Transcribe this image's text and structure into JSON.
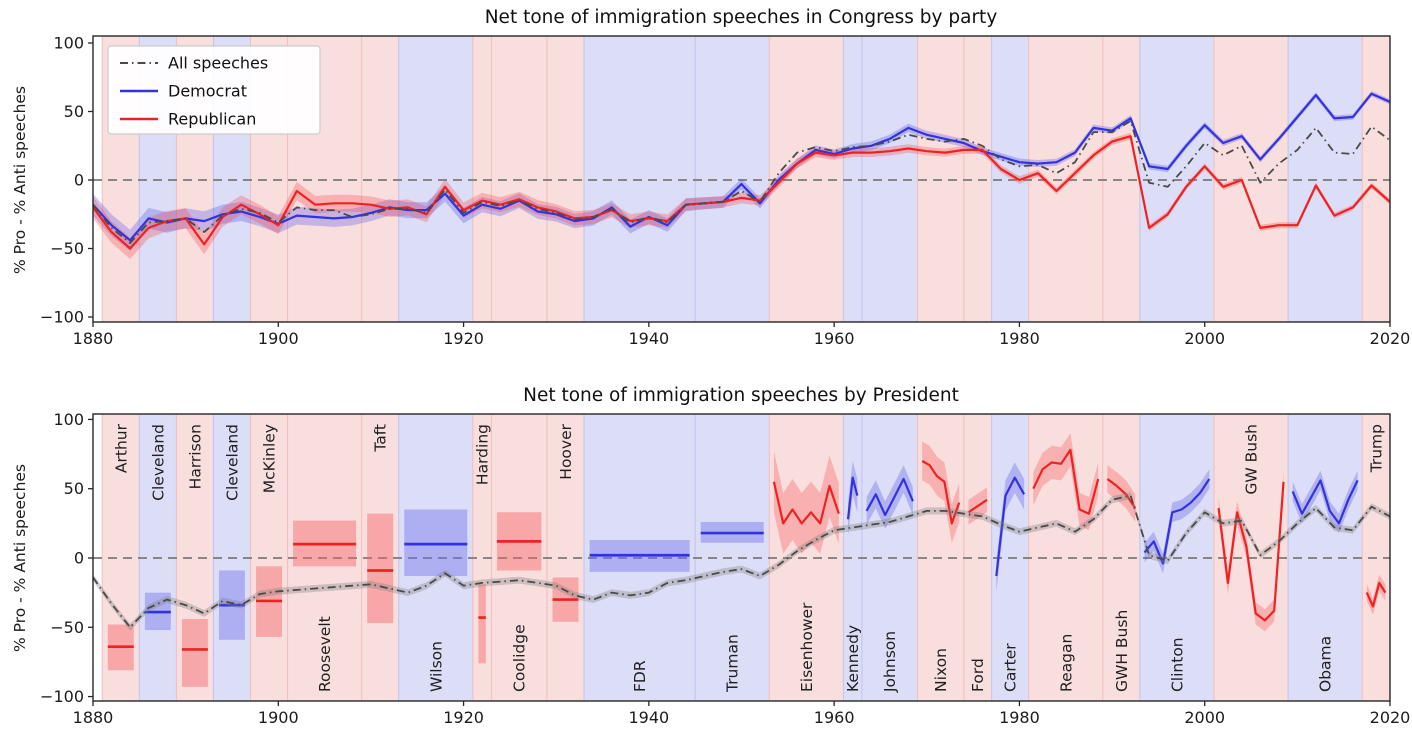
{
  "figure": {
    "ylabel": "% Pro - % Anti speeches",
    "xticks": [
      1880,
      1900,
      1920,
      1940,
      1960,
      1980,
      2000,
      2020
    ],
    "yticks": [
      100,
      50,
      0,
      -50,
      -100
    ],
    "colors": {
      "democrat": "#3333dd",
      "republican": "#ee2222",
      "all_speeches": "#4a4a4a",
      "democrat_band": "#dcddf6",
      "republican_band": "#f9dede",
      "democrat_band_edge": "#bfc3ef",
      "republican_band_edge": "#f2bcbe",
      "democrat_ci": "rgba(70,70,235,0.28)",
      "republican_ci": "rgba(248,70,70,0.30)",
      "democrat_box": "rgba(110,110,235,0.42)",
      "republican_box": "rgba(244,100,100,0.45)",
      "all_ci": "rgba(130,130,130,0.35)",
      "zero_line": "#7a7a7a",
      "axis": "#262626",
      "legend_border": "#cccccc",
      "legend_background": "#ffffff"
    },
    "legend": [
      {
        "label": "All speeches",
        "color_key": "all_speeches",
        "style": "dashdot"
      },
      {
        "label": "Democrat",
        "color_key": "democrat",
        "style": "solid"
      },
      {
        "label": "Republican",
        "color_key": "republican",
        "style": "solid"
      }
    ],
    "presidents": [
      {
        "name": "Arthur",
        "start": 1881,
        "end": 1885,
        "party": "R",
        "label_pos": "top",
        "bar": {
          "mean": -64,
          "lo": -81,
          "hi": -48
        }
      },
      {
        "name": "Cleveland",
        "start": 1885,
        "end": 1889,
        "party": "D",
        "label_pos": "top",
        "bar": {
          "mean": -39,
          "lo": -52,
          "hi": -25
        }
      },
      {
        "name": "Harrison",
        "start": 1889,
        "end": 1893,
        "party": "R",
        "label_pos": "top",
        "bar": {
          "mean": -66,
          "lo": -93,
          "hi": -44
        }
      },
      {
        "name": "Cleveland",
        "start": 1893,
        "end": 1897,
        "party": "D",
        "label_pos": "top",
        "bar": {
          "mean": -34,
          "lo": -59,
          "hi": -9
        }
      },
      {
        "name": "McKinley",
        "start": 1897,
        "end": 1901,
        "party": "R",
        "label_pos": "top",
        "bar": {
          "mean": -31,
          "lo": -57,
          "hi": -6
        }
      },
      {
        "name": "Roosevelt",
        "start": 1901,
        "end": 1909,
        "party": "R",
        "label_pos": "bottom",
        "bar": {
          "mean": 10,
          "lo": -6,
          "hi": 27
        }
      },
      {
        "name": "Taft",
        "start": 1909,
        "end": 1913,
        "party": "R",
        "label_pos": "top",
        "bar": {
          "mean": -9,
          "lo": -47,
          "hi": 32
        }
      },
      {
        "name": "Wilson",
        "start": 1913,
        "end": 1921,
        "party": "D",
        "label_pos": "bottom",
        "bar": {
          "mean": 10,
          "lo": -13,
          "hi": 35
        }
      },
      {
        "name": "Harding",
        "start": 1921,
        "end": 1923,
        "party": "R",
        "label_pos": "top",
        "bar": {
          "mean": -43,
          "lo": -76,
          "hi": -19
        }
      },
      {
        "name": "Coolidge",
        "start": 1923,
        "end": 1929,
        "party": "R",
        "label_pos": "bottom",
        "bar": {
          "mean": 12,
          "lo": -9,
          "hi": 33
        }
      },
      {
        "name": "Hoover",
        "start": 1929,
        "end": 1933,
        "party": "R",
        "label_pos": "top",
        "bar": {
          "mean": -30,
          "lo": -46,
          "hi": -14
        }
      },
      {
        "name": "FDR",
        "start": 1933,
        "end": 1945,
        "party": "D",
        "label_pos": "bottom",
        "bar": {
          "mean": 2,
          "lo": -10,
          "hi": 13
        }
      },
      {
        "name": "Truman",
        "start": 1945,
        "end": 1953,
        "party": "D",
        "label_pos": "bottom",
        "bar": {
          "mean": 18,
          "lo": 11,
          "hi": 26
        }
      },
      {
        "name": "Eisenhower",
        "start": 1953,
        "end": 1961,
        "party": "R",
        "label_pos": "bottom",
        "line": {
          "values": [
            55,
            25,
            35,
            25,
            33,
            25,
            52,
            32
          ],
          "ci": 22
        }
      },
      {
        "name": "Kennedy",
        "start": 1961,
        "end": 1963,
        "party": "D",
        "label_pos": "bottom",
        "line": {
          "values": [
            28,
            58,
            45
          ],
          "ci": 12
        }
      },
      {
        "name": "Johnson",
        "start": 1963,
        "end": 1969,
        "party": "D",
        "label_pos": "bottom",
        "line": {
          "values": [
            34,
            46,
            31,
            44,
            57,
            41
          ],
          "ci": 10
        }
      },
      {
        "name": "Nixon",
        "start": 1969,
        "end": 1974,
        "party": "R",
        "label_pos": "bottom",
        "line": {
          "values": [
            70,
            67,
            59,
            55,
            25,
            40
          ],
          "ci": 14
        }
      },
      {
        "name": "Ford",
        "start": 1974,
        "end": 1977,
        "party": "R",
        "label_pos": "bottom",
        "line": {
          "values": [
            33,
            42
          ],
          "ci": 9
        }
      },
      {
        "name": "Carter",
        "start": 1977,
        "end": 1981,
        "party": "D",
        "label_pos": "bottom",
        "line": {
          "values": [
            -13,
            45,
            58,
            46
          ],
          "ci": 11
        }
      },
      {
        "name": "Reagan",
        "start": 1981,
        "end": 1989,
        "party": "R",
        "label_pos": "bottom",
        "line": {
          "values": [
            50,
            64,
            69,
            68,
            78,
            35,
            32,
            57
          ],
          "ci": 12
        }
      },
      {
        "name": "GWH Bush",
        "start": 1989,
        "end": 1993,
        "party": "R",
        "label_pos": "bottom",
        "line": {
          "values": [
            57,
            52,
            46,
            36
          ],
          "ci": 10
        }
      },
      {
        "name": "Clinton",
        "start": 1993,
        "end": 2001,
        "party": "D",
        "label_pos": "bottom",
        "line": {
          "values": [
            4,
            12,
            -4,
            33,
            35,
            40,
            47,
            57
          ],
          "ci": 7
        }
      },
      {
        "name": "GW Bush",
        "start": 2001,
        "end": 2009,
        "party": "R",
        "label_pos": "top",
        "line": {
          "values": [
            36,
            -18,
            33,
            8,
            -40,
            -45,
            -38,
            55
          ],
          "ci": 8
        }
      },
      {
        "name": "Obama",
        "start": 2009,
        "end": 2017,
        "party": "D",
        "label_pos": "bottom",
        "line": {
          "values": [
            48,
            32,
            44,
            56,
            34,
            25,
            42,
            56
          ],
          "ci": 7
        }
      },
      {
        "name": "Trump",
        "start": 2017,
        "end": 2020,
        "party": "R",
        "label_pos": "top",
        "line": {
          "values": [
            -25,
            -35,
            -18,
            -25
          ],
          "ci": 6
        }
      }
    ]
  },
  "chart_data": [
    {
      "type": "line",
      "title": "Net tone of immigration speeches in Congress by party",
      "xlabel": "",
      "ylabel": "% Pro - % Anti speeches",
      "xlim": [
        1880,
        2020
      ],
      "ylim": [
        -103,
        103
      ],
      "grid": false,
      "legend_position": "upper left",
      "background": "presidential party era bands, red = Republican, blue = Democrat",
      "zero_reference_line": 0,
      "ci_halfwidth_by_year": {
        "1880": 8,
        "1910": 6,
        "1940": 5,
        "1955": 3.5,
        "1985": 2.5,
        "2020": 2
      },
      "x": [
        1880,
        1882,
        1884,
        1886,
        1888,
        1890,
        1892,
        1894,
        1896,
        1898,
        1900,
        1902,
        1904,
        1906,
        1908,
        1910,
        1912,
        1914,
        1916,
        1918,
        1920,
        1922,
        1924,
        1926,
        1928,
        1930,
        1932,
        1934,
        1936,
        1938,
        1940,
        1942,
        1944,
        1946,
        1948,
        1950,
        1952,
        1954,
        1956,
        1958,
        1960,
        1962,
        1964,
        1966,
        1968,
        1970,
        1972,
        1974,
        1976,
        1978,
        1980,
        1982,
        1984,
        1986,
        1988,
        1990,
        1992,
        1994,
        1996,
        1998,
        2000,
        2002,
        2004,
        2006,
        2008,
        2010,
        2012,
        2014,
        2016,
        2018,
        2020
      ],
      "series": [
        {
          "name": "All speeches",
          "color_key": "all_speeches",
          "style": "dashdot",
          "ci": false,
          "values": [
            -18,
            -35,
            -46,
            -31,
            -30,
            -28,
            -38,
            -26,
            -21,
            -24,
            -31,
            -20,
            -22,
            -22,
            -27,
            -25,
            -21,
            -21,
            -24,
            -7,
            -24,
            -16,
            -19,
            -15,
            -21,
            -24,
            -29,
            -27,
            -21,
            -31,
            -27,
            -31,
            -18,
            -17,
            -16,
            -8,
            -16,
            5,
            20,
            24,
            21,
            24,
            25,
            28,
            33,
            30,
            28,
            30,
            25,
            15,
            10,
            11,
            5,
            13,
            35,
            35,
            43,
            -2,
            -5,
            10,
            27,
            18,
            25,
            -2,
            12,
            22,
            38,
            20,
            19,
            39,
            29
          ]
        },
        {
          "name": "Democrat",
          "color_key": "democrat",
          "style": "solid",
          "ci": true,
          "values": [
            -18,
            -33,
            -44,
            -28,
            -31,
            -28,
            -30,
            -25,
            -23,
            -27,
            -32,
            -26,
            -27,
            -28,
            -27,
            -24,
            -20,
            -22,
            -22,
            -10,
            -26,
            -18,
            -21,
            -15,
            -23,
            -25,
            -30,
            -28,
            -20,
            -34,
            -27,
            -33,
            -18,
            -17,
            -16,
            -3,
            -17,
            0,
            12,
            22,
            19,
            23,
            25,
            30,
            38,
            33,
            30,
            27,
            21,
            17,
            13,
            12,
            13,
            20,
            38,
            36,
            45,
            10,
            8,
            25,
            40,
            27,
            32,
            15,
            30,
            46,
            62,
            45,
            46,
            63,
            57
          ]
        },
        {
          "name": "Republican",
          "color_key": "republican",
          "style": "solid",
          "ci": true,
          "values": [
            -20,
            -38,
            -50,
            -35,
            -30,
            -28,
            -47,
            -27,
            -18,
            -25,
            -33,
            -8,
            -18,
            -17,
            -17,
            -18,
            -21,
            -20,
            -25,
            -5,
            -22,
            -15,
            -18,
            -14,
            -20,
            -23,
            -28,
            -27,
            -22,
            -30,
            -28,
            -30,
            -18,
            -17,
            -16,
            -13,
            -15,
            -2,
            12,
            20,
            18,
            20,
            20,
            21,
            23,
            21,
            20,
            22,
            22,
            8,
            0,
            5,
            -8,
            5,
            18,
            28,
            32,
            -35,
            -25,
            -5,
            10,
            -5,
            0,
            -35,
            -33,
            -33,
            -4,
            -26,
            -20,
            -4,
            -16
          ]
        }
      ]
    },
    {
      "type": "line",
      "title": "Net tone of immigration speeches by President",
      "xlabel": "",
      "ylabel": "% Pro - % Anti speeches",
      "xlim": [
        1880,
        2020
      ],
      "ylim": [
        -103,
        103
      ],
      "grid": false,
      "background": "presidential party era bands labeled with president names; pre-1953 presidents shown as mean bar with confidence box, later presidents as yearly lines with confidence bands (values stored in figure.presidents)",
      "zero_reference_line": 0,
      "x": [
        1880,
        1882,
        1884,
        1886,
        1888,
        1890,
        1892,
        1894,
        1896,
        1898,
        1900,
        1902,
        1904,
        1906,
        1908,
        1910,
        1912,
        1914,
        1916,
        1918,
        1920,
        1922,
        1924,
        1926,
        1928,
        1930,
        1932,
        1934,
        1936,
        1938,
        1940,
        1942,
        1944,
        1946,
        1948,
        1950,
        1952,
        1954,
        1956,
        1958,
        1960,
        1962,
        1964,
        1966,
        1968,
        1970,
        1972,
        1974,
        1976,
        1978,
        1980,
        1982,
        1984,
        1986,
        1988,
        1990,
        1992,
        1994,
        1996,
        1998,
        2000,
        2002,
        2004,
        2006,
        2008,
        2010,
        2012,
        2014,
        2016,
        2018,
        2020
      ],
      "series": [
        {
          "name": "All speeches",
          "color_key": "all_speeches",
          "style": "dashdot",
          "ci": true,
          "ci_halfwidth": 2.5,
          "values": [
            -14,
            -33,
            -50,
            -36,
            -30,
            -34,
            -40,
            -31,
            -34,
            -26,
            -24,
            -23,
            -22,
            -21,
            -20,
            -19,
            -22,
            -25,
            -20,
            -11,
            -20,
            -18,
            -17,
            -16,
            -18,
            -20,
            -27,
            -30,
            -25,
            -27,
            -25,
            -18,
            -16,
            -13,
            -10,
            -8,
            -13,
            -5,
            5,
            13,
            20,
            22,
            24,
            26,
            30,
            34,
            34,
            32,
            30,
            24,
            19,
            22,
            25,
            19,
            28,
            42,
            45,
            2,
            -2,
            18,
            33,
            25,
            27,
            2,
            12,
            25,
            36,
            22,
            20,
            37,
            30
          ]
        }
      ]
    }
  ]
}
